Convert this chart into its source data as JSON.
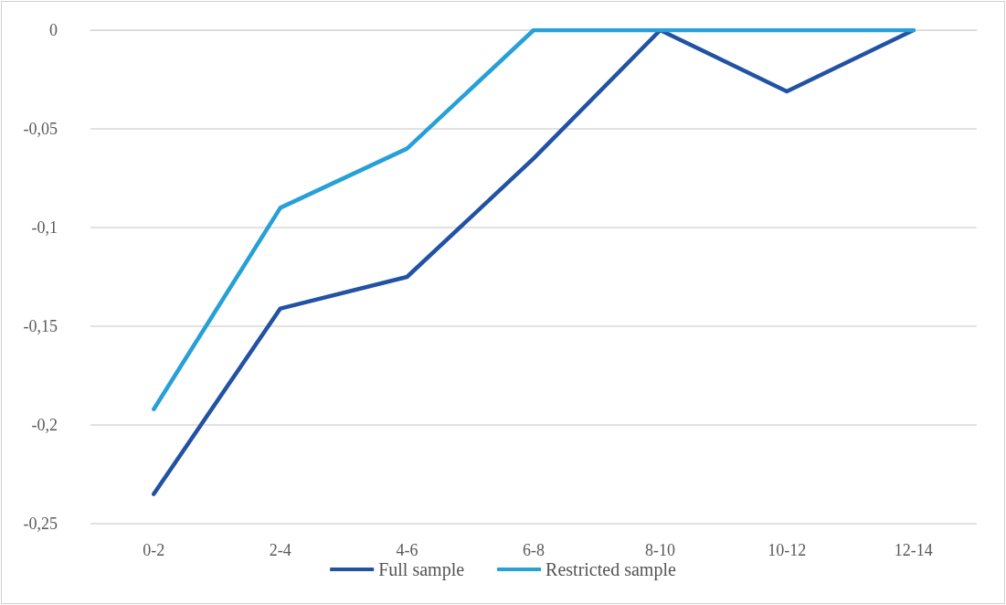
{
  "chart_data": {
    "type": "line",
    "categories": [
      "0-2",
      "2-4",
      "4-6",
      "6-8",
      "8-10",
      "10-12",
      "12-14"
    ],
    "series": [
      {
        "name": "Full sample",
        "color": "#2152a3",
        "values": [
          -0.235,
          -0.141,
          -0.125,
          -0.065,
          0,
          -0.031,
          0
        ]
      },
      {
        "name": "Restricted sample",
        "color": "#27a0d8",
        "values": [
          -0.192,
          -0.09,
          -0.06,
          0,
          0,
          0,
          0
        ]
      }
    ],
    "ylim": [
      -0.25,
      0
    ],
    "yticks": [
      0,
      {
        "value": -0.05,
        "label": "-0,05"
      },
      {
        "value": -0.1,
        "label": "-0,1"
      },
      {
        "value": -0.15,
        "label": "-0,15"
      },
      {
        "value": -0.2,
        "label": "-0,2"
      },
      {
        "value": -0.25,
        "label": "-0,25"
      }
    ],
    "grid": "y",
    "legend": "bottom",
    "marker": "none",
    "line_style": "solid"
  }
}
